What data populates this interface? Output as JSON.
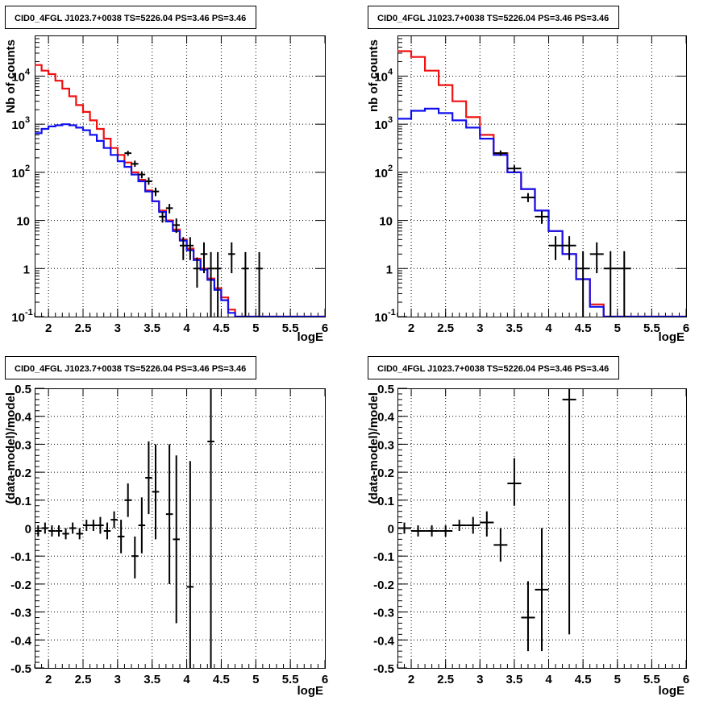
{
  "colors": {
    "total_model": "#ee1111",
    "component_model": "#1111ee",
    "data": "#000000",
    "grid": "#000000",
    "background": "#ffffff"
  },
  "chart_data": [
    {
      "type": "line",
      "title": "CID0_4FGL J1023.7+0038 TS=5226.04 PS=3.46 PS=3.46",
      "xlabel": "logE",
      "ylabel": "Nb of counts",
      "xlim": [
        1.8,
        6.0
      ],
      "ylim": [
        0.1,
        70000
      ],
      "yscale": "log",
      "grid": true,
      "xticks": [
        "2",
        "2.5",
        "3",
        "3.5",
        "4",
        "4.5",
        "5",
        "5.5",
        "6"
      ],
      "yticks": [
        {
          "value": 0.1,
          "label": "10",
          "exp": "-1"
        },
        {
          "value": 1,
          "label": "1",
          "exp": ""
        },
        {
          "value": 10,
          "label": "10",
          "exp": ""
        },
        {
          "value": 100,
          "label": "10",
          "exp": "2"
        },
        {
          "value": 1000,
          "label": "10",
          "exp": "3"
        },
        {
          "value": 10000,
          "label": "10",
          "exp": "4"
        }
      ],
      "bin_edges": [
        1.8,
        1.9,
        2.0,
        2.1,
        2.2,
        2.3,
        2.4,
        2.5,
        2.6,
        2.7,
        2.8,
        2.9,
        3.0,
        3.1,
        3.2,
        3.3,
        3.4,
        3.5,
        3.6,
        3.7,
        3.8,
        3.9,
        4.0,
        4.1,
        4.2,
        4.3,
        4.4,
        4.5,
        4.6,
        4.7,
        4.8,
        4.9,
        5.0,
        5.1,
        5.2,
        5.3,
        5.4,
        5.5,
        5.6,
        5.7,
        5.8,
        5.9,
        6.0
      ],
      "series": [
        {
          "kind": "step",
          "color_key": "total_model",
          "values": [
            17000,
            13000,
            11000,
            8000,
            5500,
            3800,
            2500,
            1800,
            1200,
            800,
            500,
            320,
            230,
            160,
            100,
            70,
            42,
            25,
            16,
            10,
            6.5,
            4.0,
            2.6,
            1.6,
            1.0,
            0.62,
            0.39,
            0.25,
            0.14,
            0.1,
            0.1,
            0.1,
            0.1,
            0.1,
            0.1,
            0.1,
            0.1,
            0.1,
            0.1,
            0.1,
            0.1,
            0.1
          ]
        },
        {
          "kind": "step",
          "color_key": "component_model",
          "values": [
            650,
            800,
            900,
            950,
            1000,
            950,
            850,
            750,
            600,
            450,
            320,
            230,
            170,
            130,
            90,
            65,
            40,
            25,
            15,
            9.5,
            6.0,
            3.8,
            2.4,
            1.5,
            0.95,
            0.58,
            0.36,
            0.22,
            0.12,
            0.1,
            0.1,
            0.1,
            0.1,
            0.1,
            0.1,
            0.1,
            0.1,
            0.1,
            0.1,
            0.1,
            0.1,
            0.1
          ]
        },
        {
          "kind": "points",
          "points": [
            {
              "x": 3.15,
              "xerr": 0.05,
              "y": 250,
              "ylo": 220,
              "yhi": 280
            },
            {
              "x": 3.25,
              "xerr": 0.05,
              "y": 150,
              "ylo": 130,
              "yhi": 175
            },
            {
              "x": 3.35,
              "xerr": 0.05,
              "y": 90,
              "ylo": 75,
              "yhi": 105
            },
            {
              "x": 3.45,
              "xerr": 0.05,
              "y": 65,
              "ylo": 55,
              "yhi": 78
            },
            {
              "x": 3.55,
              "xerr": 0.05,
              "y": 40,
              "ylo": 32,
              "yhi": 48
            },
            {
              "x": 3.65,
              "xerr": 0.05,
              "y": 12,
              "ylo": 9,
              "yhi": 15
            },
            {
              "x": 3.75,
              "xerr": 0.05,
              "y": 18,
              "ylo": 14,
              "yhi": 22
            },
            {
              "x": 3.85,
              "xerr": 0.05,
              "y": 8,
              "ylo": 5.5,
              "yhi": 11
            },
            {
              "x": 3.95,
              "xerr": 0.05,
              "y": 3,
              "ylo": 1.5,
              "yhi": 4.5
            },
            {
              "x": 4.05,
              "xerr": 0.05,
              "y": 3,
              "ylo": 1.5,
              "yhi": 4.5
            },
            {
              "x": 4.15,
              "xerr": 0.05,
              "y": 1,
              "ylo": 0.4,
              "yhi": 1.7
            },
            {
              "x": 4.25,
              "xerr": 0.05,
              "y": 2,
              "ylo": 0.8,
              "yhi": 3.5
            },
            {
              "x": 4.35,
              "xerr": 0.05,
              "y": 1,
              "ylo": 0.1,
              "yhi": 2.2
            },
            {
              "x": 4.45,
              "xerr": 0.05,
              "y": 1,
              "ylo": 0.1,
              "yhi": 2.2
            },
            {
              "x": 4.65,
              "xerr": 0.05,
              "y": 2,
              "ylo": 0.8,
              "yhi": 3.5
            },
            {
              "x": 4.85,
              "xerr": 0.05,
              "y": 1,
              "ylo": 0.1,
              "yhi": 2.2
            },
            {
              "x": 5.05,
              "xerr": 0.05,
              "y": 1,
              "ylo": 0.1,
              "yhi": 2.2
            }
          ]
        }
      ]
    },
    {
      "type": "line",
      "title": "CID0_4FGL J1023.7+0038 TS=5226.04 PS=3.46 PS=3.46",
      "xlabel": "logE",
      "ylabel": "nb of counts",
      "xlim": [
        1.8,
        6.0
      ],
      "ylim": [
        0.1,
        70000
      ],
      "yscale": "log",
      "grid": true,
      "xticks": [
        "2",
        "2.5",
        "3",
        "3.5",
        "4",
        "4.5",
        "5",
        "5.5",
        "6"
      ],
      "yticks": [
        {
          "value": 0.1,
          "label": "10",
          "exp": "-1"
        },
        {
          "value": 1,
          "label": "1",
          "exp": ""
        },
        {
          "value": 10,
          "label": "10",
          "exp": ""
        },
        {
          "value": 100,
          "label": "10",
          "exp": "2"
        },
        {
          "value": 1000,
          "label": "10",
          "exp": "3"
        },
        {
          "value": 10000,
          "label": "10",
          "exp": "4"
        }
      ],
      "bin_edges": [
        1.8,
        2.0,
        2.2,
        2.4,
        2.6,
        2.8,
        3.0,
        3.2,
        3.4,
        3.6,
        3.8,
        4.0,
        4.2,
        4.4,
        4.6,
        4.8,
        5.0,
        5.2,
        5.4,
        5.6,
        5.8,
        6.0
      ],
      "series": [
        {
          "kind": "step",
          "color_key": "total_model",
          "values": [
            33000,
            25000,
            13000,
            6500,
            3000,
            1400,
            600,
            250,
            100,
            45,
            16,
            6,
            2,
            0.6,
            0.18,
            0.1,
            0.1,
            0.1,
            0.1,
            0.1,
            0.1
          ]
        },
        {
          "kind": "step",
          "color_key": "component_model",
          "values": [
            1300,
            1900,
            2100,
            1700,
            1200,
            850,
            500,
            230,
            100,
            45,
            16,
            6,
            2,
            0.6,
            0.16,
            0.1,
            0.1,
            0.1,
            0.1,
            0.1,
            0.1
          ]
        },
        {
          "kind": "points",
          "points": [
            {
              "x": 3.3,
              "xerr": 0.1,
              "y": 250,
              "ylo": 220,
              "yhi": 285
            },
            {
              "x": 3.5,
              "xerr": 0.1,
              "y": 120,
              "ylo": 100,
              "yhi": 140
            },
            {
              "x": 3.7,
              "xerr": 0.1,
              "y": 30,
              "ylo": 24,
              "yhi": 37
            },
            {
              "x": 3.9,
              "xerr": 0.1,
              "y": 12,
              "ylo": 8.5,
              "yhi": 15.5
            },
            {
              "x": 4.1,
              "xerr": 0.1,
              "y": 3,
              "ylo": 1.5,
              "yhi": 4.7
            },
            {
              "x": 4.3,
              "xerr": 0.1,
              "y": 3,
              "ylo": 1.5,
              "yhi": 4.7
            },
            {
              "x": 4.5,
              "xerr": 0.1,
              "y": 1,
              "ylo": 0.1,
              "yhi": 2.3
            },
            {
              "x": 4.7,
              "xerr": 0.1,
              "y": 2,
              "ylo": 0.8,
              "yhi": 3.5
            },
            {
              "x": 4.9,
              "xerr": 0.1,
              "y": 1,
              "ylo": 0.1,
              "yhi": 2.3
            },
            {
              "x": 5.1,
              "xerr": 0.1,
              "y": 1,
              "ylo": 0.1,
              "yhi": 2.3
            }
          ]
        }
      ]
    },
    {
      "type": "scatter",
      "title": "CID0_4FGL J1023.7+0038 TS=5226.04 PS=3.46 PS=3.46",
      "xlabel": "logE",
      "ylabel": "(data-model)/model",
      "xlim": [
        1.8,
        6.0
      ],
      "ylim": [
        -0.5,
        0.5
      ],
      "yscale": "linear",
      "grid": true,
      "xticks": [
        "2",
        "2.5",
        "3",
        "3.5",
        "4",
        "4.5",
        "5",
        "5.5",
        "6"
      ],
      "yticks": [
        "-0.5",
        "-0.4",
        "-0.3",
        "-0.2",
        "-0.1",
        "0",
        "0.1",
        "0.2",
        "0.3",
        "0.4",
        "0.5"
      ],
      "series": [
        {
          "kind": "points",
          "points": [
            {
              "x": 1.85,
              "xerr": 0.05,
              "y": -0.01,
              "ylo": -0.03,
              "yhi": 0.01
            },
            {
              "x": 1.95,
              "xerr": 0.05,
              "y": 0.0,
              "ylo": -0.02,
              "yhi": 0.02
            },
            {
              "x": 2.05,
              "xerr": 0.05,
              "y": -0.01,
              "ylo": -0.03,
              "yhi": 0.01
            },
            {
              "x": 2.15,
              "xerr": 0.05,
              "y": -0.01,
              "ylo": -0.03,
              "yhi": 0.01
            },
            {
              "x": 2.25,
              "xerr": 0.05,
              "y": -0.02,
              "ylo": -0.04,
              "yhi": 0.0
            },
            {
              "x": 2.35,
              "xerr": 0.05,
              "y": 0.0,
              "ylo": -0.02,
              "yhi": 0.02
            },
            {
              "x": 2.45,
              "xerr": 0.05,
              "y": -0.02,
              "ylo": -0.04,
              "yhi": 0.0
            },
            {
              "x": 2.55,
              "xerr": 0.05,
              "y": 0.01,
              "ylo": -0.01,
              "yhi": 0.03
            },
            {
              "x": 2.65,
              "xerr": 0.05,
              "y": 0.01,
              "ylo": -0.01,
              "yhi": 0.03
            },
            {
              "x": 2.75,
              "xerr": 0.05,
              "y": 0.01,
              "ylo": -0.02,
              "yhi": 0.04
            },
            {
              "x": 2.85,
              "xerr": 0.05,
              "y": -0.01,
              "ylo": -0.04,
              "yhi": 0.02
            },
            {
              "x": 2.95,
              "xerr": 0.05,
              "y": 0.03,
              "ylo": 0.0,
              "yhi": 0.06
            },
            {
              "x": 3.05,
              "xerr": 0.05,
              "y": -0.03,
              "ylo": -0.09,
              "yhi": 0.03
            },
            {
              "x": 3.15,
              "xerr": 0.05,
              "y": 0.1,
              "ylo": 0.04,
              "yhi": 0.16
            },
            {
              "x": 3.25,
              "xerr": 0.05,
              "y": -0.1,
              "ylo": -0.18,
              "yhi": -0.03
            },
            {
              "x": 3.35,
              "xerr": 0.05,
              "y": 0.01,
              "ylo": -0.09,
              "yhi": 0.11
            },
            {
              "x": 3.45,
              "xerr": 0.05,
              "y": 0.18,
              "ylo": 0.05,
              "yhi": 0.31
            },
            {
              "x": 3.55,
              "xerr": 0.05,
              "y": 0.13,
              "ylo": -0.04,
              "yhi": 0.3
            },
            {
              "x": 3.75,
              "xerr": 0.05,
              "y": 0.05,
              "ylo": -0.2,
              "yhi": 0.3
            },
            {
              "x": 3.85,
              "xerr": 0.05,
              "y": -0.04,
              "ylo": -0.34,
              "yhi": 0.26
            },
            {
              "x": 4.05,
              "xerr": 0.05,
              "y": -0.21,
              "ylo": -0.5,
              "yhi": 0.24
            },
            {
              "x": 4.35,
              "xerr": 0.05,
              "y": 0.31,
              "ylo": -0.5,
              "yhi": 0.5
            }
          ]
        }
      ]
    },
    {
      "type": "scatter",
      "title": "CID0_4FGL J1023.7+0038 TS=5226.04 PS=3.46 PS=3.46",
      "xlabel": "logE",
      "ylabel": "(data-model)/model",
      "xlim": [
        1.8,
        6.0
      ],
      "ylim": [
        -0.5,
        0.5
      ],
      "yscale": "linear",
      "grid": true,
      "xticks": [
        "2",
        "2.5",
        "3",
        "3.5",
        "4",
        "4.5",
        "5",
        "5.5",
        "6"
      ],
      "yticks": [
        "-0.5",
        "-0.4",
        "-0.3",
        "-0.2",
        "-0.1",
        "0",
        "0.1",
        "0.2",
        "0.3",
        "0.4",
        "0.5"
      ],
      "series": [
        {
          "kind": "points",
          "points": [
            {
              "x": 1.9,
              "xerr": 0.1,
              "y": 0.0,
              "ylo": -0.02,
              "yhi": 0.02
            },
            {
              "x": 2.1,
              "xerr": 0.1,
              "y": -0.01,
              "ylo": -0.03,
              "yhi": 0.01
            },
            {
              "x": 2.3,
              "xerr": 0.1,
              "y": -0.01,
              "ylo": -0.03,
              "yhi": 0.01
            },
            {
              "x": 2.5,
              "xerr": 0.1,
              "y": -0.01,
              "ylo": -0.03,
              "yhi": 0.01
            },
            {
              "x": 2.7,
              "xerr": 0.1,
              "y": 0.01,
              "ylo": -0.01,
              "yhi": 0.03
            },
            {
              "x": 2.9,
              "xerr": 0.1,
              "y": 0.01,
              "ylo": -0.02,
              "yhi": 0.04
            },
            {
              "x": 3.1,
              "xerr": 0.1,
              "y": 0.02,
              "ylo": -0.03,
              "yhi": 0.06
            },
            {
              "x": 3.3,
              "xerr": 0.1,
              "y": -0.06,
              "ylo": -0.12,
              "yhi": 0.0
            },
            {
              "x": 3.5,
              "xerr": 0.1,
              "y": 0.16,
              "ylo": 0.08,
              "yhi": 0.25
            },
            {
              "x": 3.7,
              "xerr": 0.1,
              "y": -0.32,
              "ylo": -0.44,
              "yhi": -0.19
            },
            {
              "x": 3.9,
              "xerr": 0.1,
              "y": -0.22,
              "ylo": -0.44,
              "yhi": 0.0
            },
            {
              "x": 4.3,
              "xerr": 0.1,
              "y": 0.46,
              "ylo": -0.38,
              "yhi": 0.5
            }
          ]
        }
      ]
    }
  ]
}
